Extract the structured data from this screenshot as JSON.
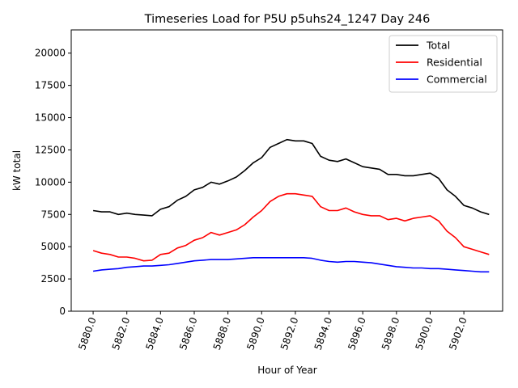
{
  "chart_data": {
    "type": "line",
    "title": "Timeseries Load for P5U p5uhs24_1247  Day 246",
    "xlabel": "Hour of Year",
    "ylabel": "kW total",
    "xlim": [
      5878.7,
      5904.3
    ],
    "ylim": [
      0,
      21800
    ],
    "xticks": [
      5880,
      5882,
      5884,
      5886,
      5888,
      5890,
      5892,
      5894,
      5896,
      5898,
      5900,
      5902
    ],
    "xtick_labels": [
      "5880.0",
      "5882.0",
      "5884.0",
      "5886.0",
      "5888.0",
      "5890.0",
      "5892.0",
      "5894.0",
      "5896.0",
      "5898.0",
      "5900.0",
      "5902.0"
    ],
    "yticks": [
      0,
      2500,
      5000,
      7500,
      10000,
      12500,
      15000,
      17500,
      20000
    ],
    "ytick_labels": [
      "0",
      "2500",
      "5000",
      "7500",
      "10000",
      "12500",
      "15000",
      "17500",
      "20000"
    ],
    "legend_position": "top-right",
    "grid": false,
    "x": [
      5880,
      5880.5,
      5881,
      5881.5,
      5882,
      5882.5,
      5883,
      5883.5,
      5884,
      5884.5,
      5885,
      5885.5,
      5886,
      5886.5,
      5887,
      5887.5,
      5888,
      5888.5,
      5889,
      5889.5,
      5890,
      5890.5,
      5891,
      5891.5,
      5892,
      5892.5,
      5893,
      5893.5,
      5894,
      5894.5,
      5895,
      5895.5,
      5896,
      5896.5,
      5897,
      5897.5,
      5898,
      5898.5,
      5899,
      5899.5,
      5900,
      5900.5,
      5901,
      5901.5,
      5902,
      5902.5,
      5903,
      5903.5
    ],
    "series": [
      {
        "name": "Total",
        "color": "#000000",
        "values": [
          7800,
          7700,
          7700,
          7500,
          7600,
          7500,
          7450,
          7400,
          7900,
          8100,
          8600,
          8900,
          9400,
          9600,
          10000,
          9850,
          10100,
          10400,
          10900,
          11500,
          11900,
          12700,
          13000,
          13300,
          13200,
          13200,
          13000,
          12000,
          11700,
          11600,
          11800,
          11500,
          11200,
          11100,
          11000,
          10600,
          10600,
          10500,
          10500,
          10600,
          10700,
          10300,
          9400,
          8900,
          8200,
          8000,
          7700,
          7500
        ]
      },
      {
        "name": "Residential",
        "color": "#ff0000",
        "values": [
          4700,
          4500,
          4400,
          4200,
          4200,
          4100,
          3900,
          3950,
          4400,
          4500,
          4900,
          5100,
          5500,
          5700,
          6100,
          5900,
          6100,
          6300,
          6700,
          7300,
          7800,
          8500,
          8900,
          9100,
          9100,
          9000,
          8900,
          8100,
          7800,
          7800,
          8000,
          7700,
          7500,
          7400,
          7400,
          7100,
          7200,
          7000,
          7200,
          7300,
          7400,
          7000,
          6200,
          5700,
          5000,
          4800,
          4600,
          4400
        ]
      },
      {
        "name": "Commercial",
        "color": "#0000ff",
        "values": [
          3100,
          3200,
          3250,
          3300,
          3400,
          3450,
          3500,
          3500,
          3550,
          3600,
          3700,
          3800,
          3900,
          3950,
          4000,
          4000,
          4000,
          4050,
          4100,
          4150,
          4150,
          4150,
          4150,
          4150,
          4150,
          4150,
          4100,
          3950,
          3850,
          3800,
          3850,
          3850,
          3800,
          3750,
          3650,
          3550,
          3450,
          3400,
          3350,
          3350,
          3300,
          3300,
          3250,
          3200,
          3150,
          3100,
          3050,
          3050
        ]
      }
    ]
  }
}
